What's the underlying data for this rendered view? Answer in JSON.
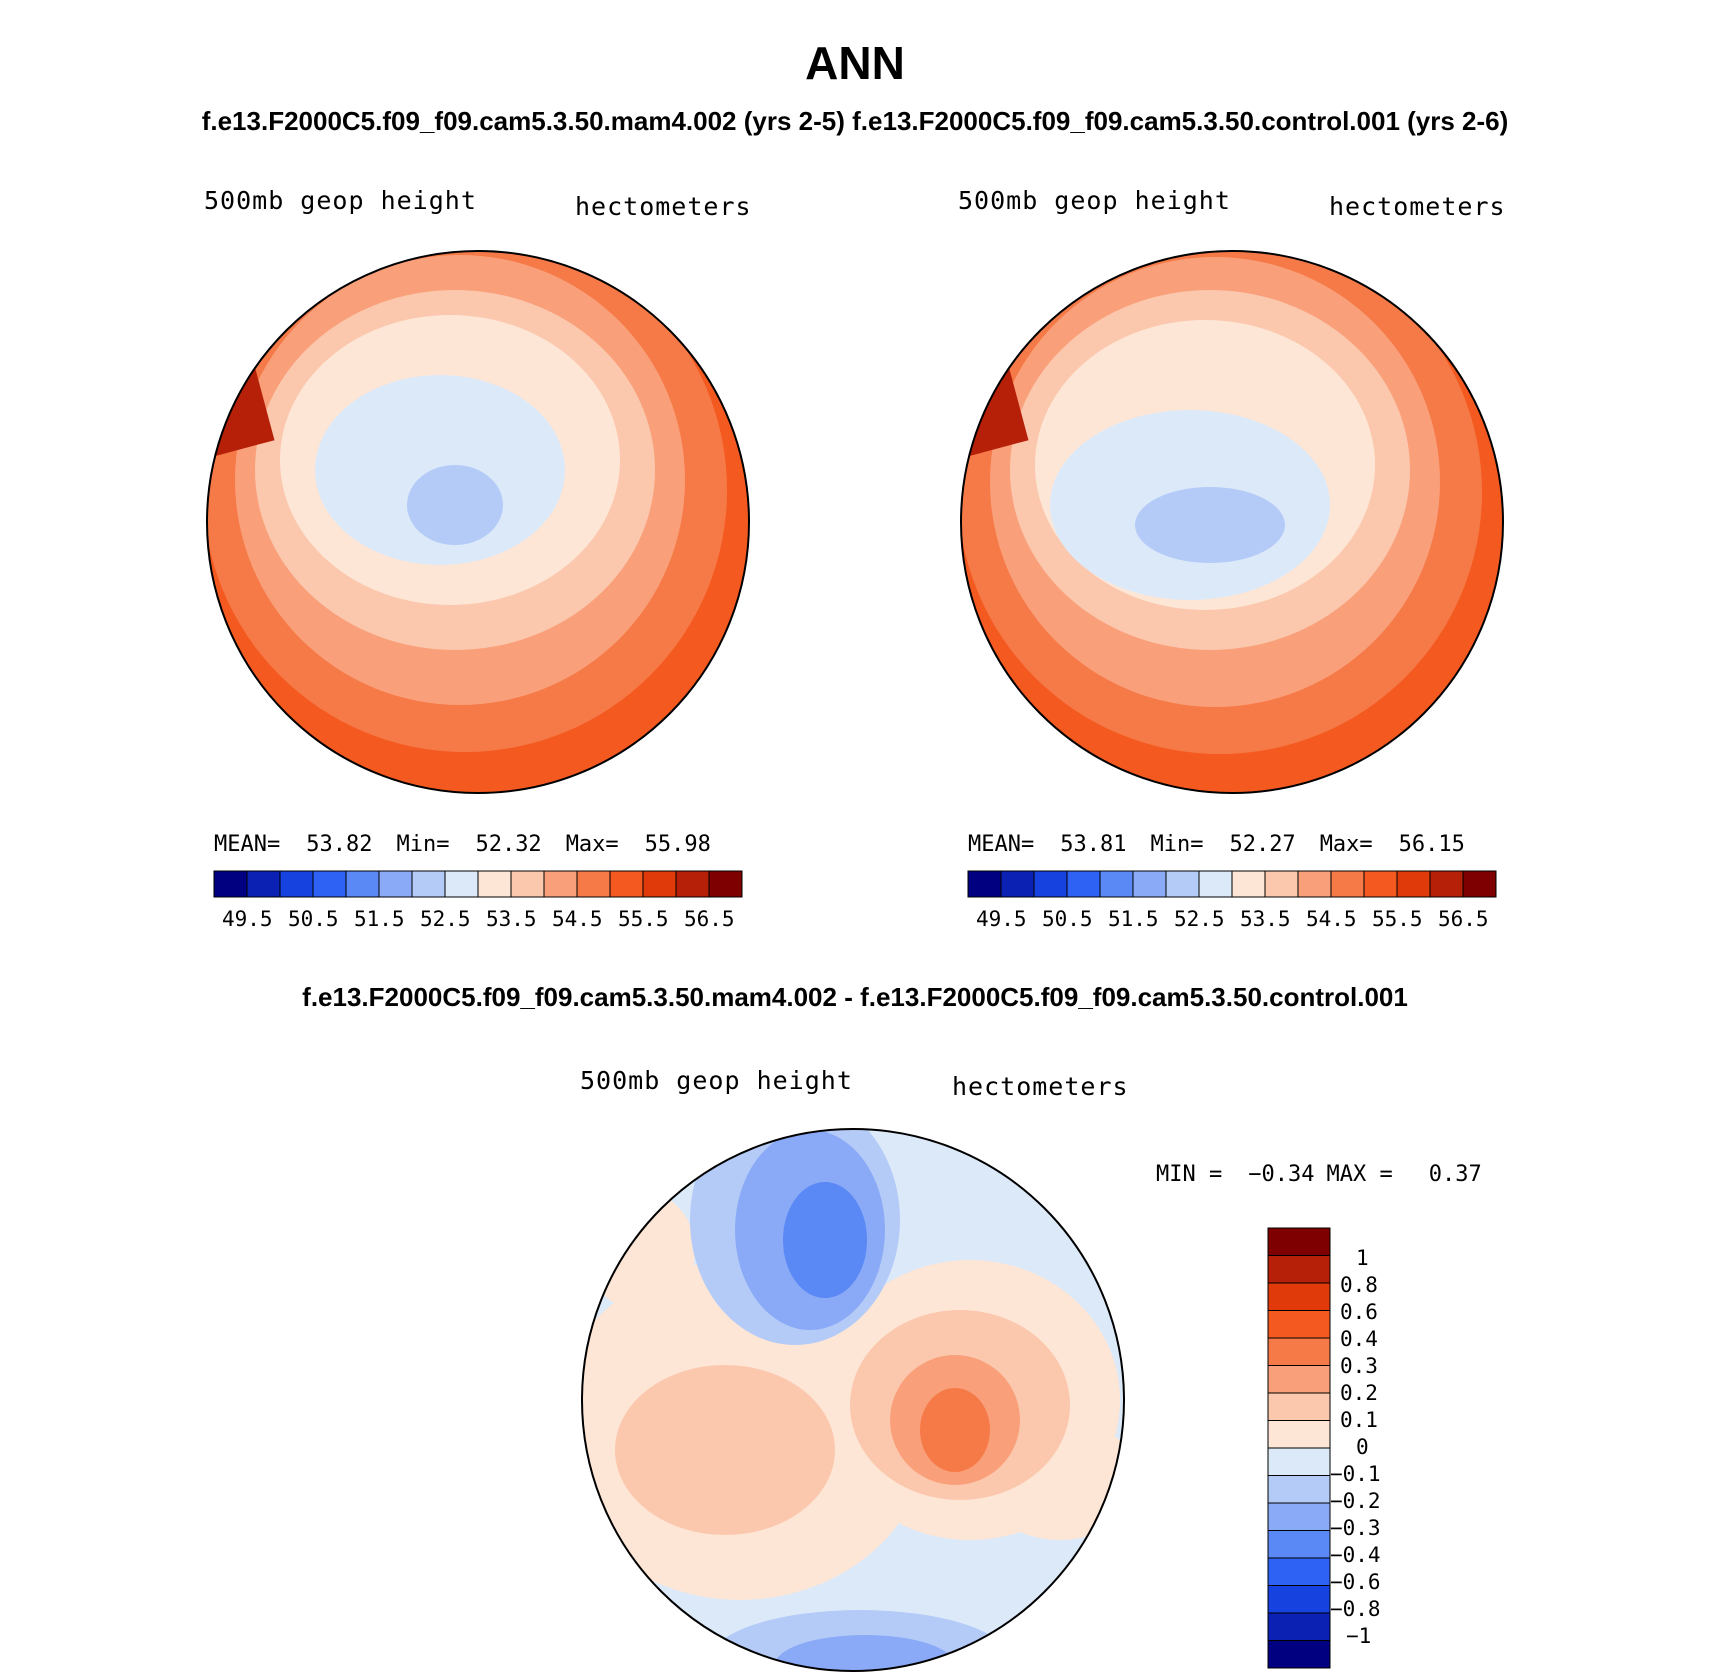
{
  "figure": {
    "title": "ANN",
    "top_subtitle_left": "f.e13.F2000C5.f09_f09.cam5.3.50.mam4.002 (yrs 2-5)",
    "top_subtitle_right": "f.e13.F2000C5.f09_f09.cam5.3.50.control.001 (yrs 2-6)",
    "diff_subtitle": "f.e13.F2000C5.f09_f09.cam5.3.50.mam4.002 - f.e13.F2000C5.f09_f09.cam5.3.50.control.001"
  },
  "panels": [
    {
      "id": "mam4",
      "field_label": "500mb  geop  height",
      "units_label": "hectometers",
      "stats": {
        "mean_label": "MEAN=",
        "mean": "53.82",
        "min_label": "Min=",
        "min": "52.32",
        "max_label": "Max=",
        "max": "55.98"
      },
      "colorbar_ticks": [
        "49.5",
        "50.5",
        "51.5",
        "52.5",
        "53.5",
        "54.5",
        "55.5",
        "56.5"
      ]
    },
    {
      "id": "control",
      "field_label": "500mb  geop  height",
      "units_label": "hectometers",
      "stats": {
        "mean_label": "MEAN=",
        "mean": "53.81",
        "min_label": "Min=",
        "min": "52.27",
        "max_label": "Max=",
        "max": "56.15"
      },
      "colorbar_ticks": [
        "49.5",
        "50.5",
        "51.5",
        "52.5",
        "53.5",
        "54.5",
        "55.5",
        "56.5"
      ]
    },
    {
      "id": "difference",
      "field_label": "500mb  geop  height",
      "units_label": "hectometers",
      "stats": {
        "min_label": "MIN =",
        "min": "−0.34",
        "max_label": "MAX =",
        "max": "0.37"
      },
      "colorbar_ticks": [
        "1",
        "0.8",
        "0.6",
        "0.4",
        "0.3",
        "0.2",
        "0.1",
        "0",
        "−0.1",
        "−0.2",
        "−0.3",
        "−0.4",
        "−0.6",
        "−0.8",
        "−1"
      ]
    }
  ],
  "colors": {
    "abs_scale": [
      "#000080",
      "#0a21b3",
      "#1642e0",
      "#2e62f5",
      "#5a88f5",
      "#8aaaf7",
      "#b4cbf8",
      "#dce9f9",
      "#fde6d6",
      "#fbc8ae",
      "#f9a07a",
      "#f67a48",
      "#f45a20",
      "#e03a0b",
      "#b62009",
      "#7e0000"
    ],
    "diff_scale": [
      "#7e0000",
      "#b62009",
      "#e03a0b",
      "#f45a20",
      "#f67a48",
      "#f9a07a",
      "#fbc8ae",
      "#fde6d6",
      "#dce9f9",
      "#b4cbf8",
      "#8aaaf7",
      "#5a88f5",
      "#2e62f5",
      "#1642e0",
      "#0a21b3",
      "#000080"
    ],
    "coastline": "#000000"
  }
}
